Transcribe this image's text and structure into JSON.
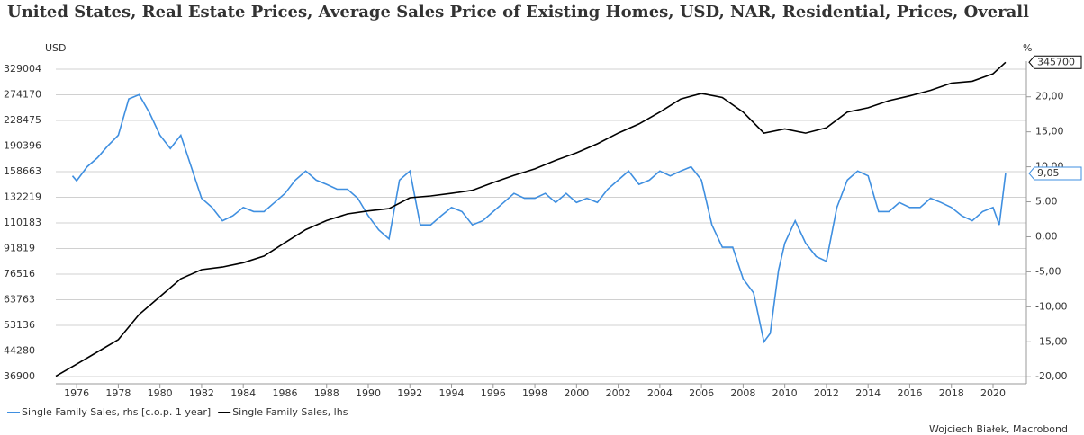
{
  "chart_data": {
    "type": "line",
    "title": "United States, Real Estate Prices, Average Sales Price of Existing Homes, USD, NAR, Residential, Prices, Overall",
    "y_label": "USD",
    "y2_label": "%",
    "source": "Wojciech Białek, Macrobond",
    "xlim": [
      1975,
      2021.6
    ],
    "xticks": [
      1976,
      1978,
      1980,
      1982,
      1984,
      1986,
      1988,
      1990,
      1992,
      1994,
      1996,
      1998,
      2000,
      2002,
      2004,
      2006,
      2008,
      2010,
      2012,
      2014,
      2016,
      2018,
      2020
    ],
    "ylog": true,
    "ylim": [
      35060,
      348500
    ],
    "yticks": [
      36900,
      44280,
      53136,
      63763,
      76516,
      91819,
      110183,
      132219,
      158663,
      190396,
      228475,
      274170,
      329004
    ],
    "y2lim": [
      -21,
      25.1
    ],
    "y2ticks": [
      {
        "value": -20,
        "label": "-20,00"
      },
      {
        "value": -15,
        "label": "-15,00"
      },
      {
        "value": -10,
        "label": "-10,00"
      },
      {
        "value": -5,
        "label": "-5,00"
      },
      {
        "value": 0,
        "label": "0,00"
      },
      {
        "value": 5,
        "label": "5,00"
      },
      {
        "value": 10,
        "label": "10,00"
      },
      {
        "value": 15,
        "label": "15,00"
      },
      {
        "value": 20,
        "label": "20,00"
      }
    ],
    "grid": true,
    "legend": "bottom-left",
    "series": [
      {
        "name": "Single Family Sales, rhs [c.o.p. 1 year]",
        "color": "#3f8fe0",
        "axis": "y2",
        "end_label": "9,05",
        "x": [
          1975.8,
          1976,
          1976.5,
          1977,
          1977.5,
          1978,
          1978.5,
          1979,
          1979.5,
          1980,
          1980.5,
          1981,
          1981.5,
          1982,
          1982.5,
          1983,
          1983.5,
          1984,
          1984.5,
          1985,
          1985.5,
          1986,
          1986.5,
          1987,
          1987.5,
          1988,
          1988.5,
          1989,
          1989.5,
          1990,
          1990.5,
          1991,
          1991.5,
          1992,
          1992.5,
          1993,
          1993.5,
          1994,
          1994.5,
          1995,
          1995.5,
          1996,
          1996.5,
          1997,
          1997.5,
          1998,
          1998.5,
          1999,
          1999.5,
          2000,
          2000.5,
          2001,
          2001.5,
          2002,
          2002.5,
          2003,
          2003.5,
          2004,
          2004.5,
          2005,
          2005.5,
          2006,
          2006.5,
          2007,
          2007.5,
          2008,
          2008.5,
          2009,
          2009.3,
          2009.7,
          2010,
          2010.5,
          2011,
          2011.5,
          2012,
          2012.5,
          2013,
          2013.5,
          2014,
          2014.5,
          2015,
          2015.5,
          2016,
          2016.5,
          2017,
          2017.5,
          2018,
          2018.5,
          2019,
          2019.5,
          2020,
          2020.3,
          2020.6
        ],
        "values": [
          8.7,
          8,
          10,
          11.3,
          13,
          14.5,
          19.7,
          20.3,
          17.7,
          14.5,
          12.6,
          14.5,
          10,
          5.5,
          4.2,
          2.3,
          3,
          4.2,
          3.6,
          3.6,
          4.9,
          6.2,
          8.1,
          9.4,
          8.1,
          7.5,
          6.8,
          6.8,
          5.5,
          3,
          1,
          -0.3,
          8.1,
          9.4,
          1.7,
          1.7,
          3,
          4.2,
          3.6,
          1.7,
          2.3,
          3.6,
          4.9,
          6.2,
          5.5,
          5.5,
          6.2,
          4.9,
          6.2,
          4.9,
          5.5,
          4.9,
          6.8,
          8.1,
          9.4,
          7.5,
          8.1,
          9.4,
          8.7,
          9.4,
          10,
          8.1,
          1.7,
          -1.5,
          -1.5,
          -6,
          -8,
          -15,
          -13.8,
          -4.8,
          -0.9,
          2.3,
          -0.9,
          -2.8,
          -3.5,
          4.2,
          8.1,
          9.4,
          8.7,
          3.6,
          3.6,
          4.9,
          4.2,
          4.2,
          5.5,
          4.9,
          4.2,
          3,
          2.3,
          3.6,
          4.2,
          1.7,
          9.05
        ]
      },
      {
        "name": "Single Family Sales, lhs",
        "color": "#000000",
        "axis": "y",
        "x": [
          1975,
          1976,
          1977,
          1978,
          1979,
          1980,
          1981,
          1982,
          1983,
          1984,
          1985,
          1986,
          1987,
          1988,
          1989,
          1990,
          1991,
          1992,
          1993,
          1994,
          1995,
          1996,
          1997,
          1998,
          1999,
          2000,
          2001,
          2002,
          2003,
          2004,
          2005,
          2006,
          2007,
          2008,
          2009,
          2010,
          2011,
          2012,
          2013,
          2014,
          2015,
          2016,
          2017,
          2018,
          2019,
          2020,
          2020.6
        ],
        "values": [
          37000,
          40300,
          44000,
          48000,
          57400,
          65200,
          74000,
          79000,
          80500,
          83000,
          87000,
          95800,
          105000,
          112000,
          117500,
          120000,
          122000,
          131800,
          133500,
          136000,
          139000,
          146800,
          154600,
          161800,
          172000,
          181500,
          193500,
          208800,
          222800,
          242500,
          266000,
          276800,
          269000,
          242500,
          208800,
          215000,
          208800,
          217000,
          242500,
          250000,
          263000,
          272000,
          283000,
          298000,
          302000,
          318500,
          345700
        ]
      }
    ]
  }
}
